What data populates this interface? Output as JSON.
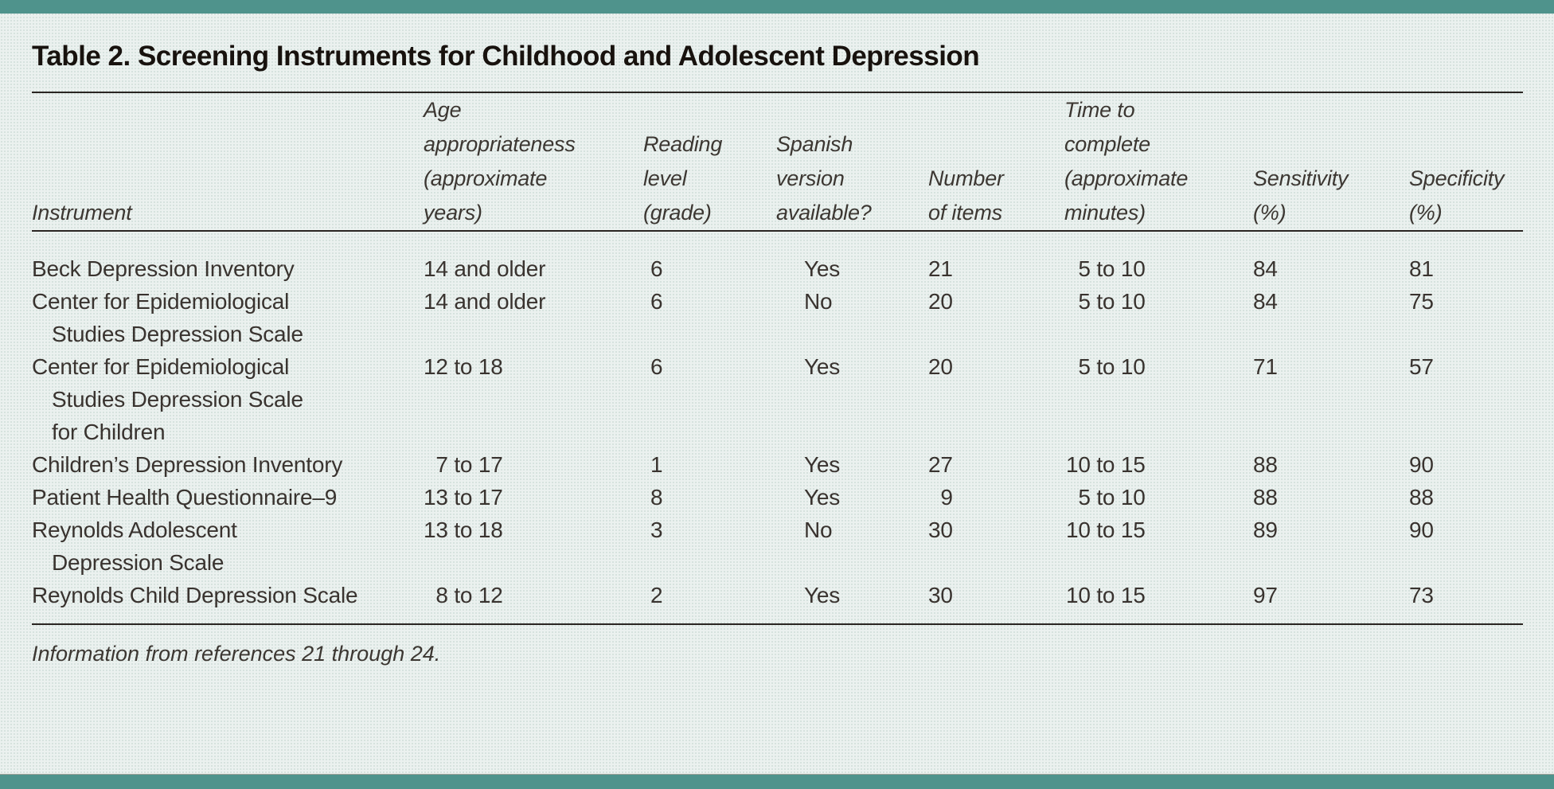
{
  "title": "Table 2. Screening Instruments for Childhood and Adolescent Depression",
  "footnote": "Information from references 21 through 24.",
  "colors": {
    "accent_teal": "#4f938c",
    "background": "#ebf1ef",
    "rule": "#2a2522",
    "text": "#39332f"
  },
  "table": {
    "columns": [
      {
        "key": "instrument",
        "lines": [
          "Instrument"
        ]
      },
      {
        "key": "age",
        "lines": [
          "Age",
          "appropriateness",
          "(approximate",
          "years)"
        ],
        "digit_align": true
      },
      {
        "key": "reading_level",
        "lines": [
          "Reading",
          "level",
          "(grade)"
        ]
      },
      {
        "key": "spanish",
        "lines": [
          "Spanish",
          "version",
          "available?"
        ]
      },
      {
        "key": "items",
        "lines": [
          "Number",
          "of items"
        ],
        "digit_align": true
      },
      {
        "key": "time",
        "lines": [
          "Time to",
          "complete",
          "(approximate",
          "minutes)"
        ],
        "digit_align": true
      },
      {
        "key": "sensitivity",
        "lines": [
          "Sensitivity",
          "(%)"
        ]
      },
      {
        "key": "specificity",
        "lines": [
          "Specificity",
          "(%)"
        ]
      }
    ],
    "rows": [
      {
        "instrument": [
          "Beck Depression Inventory"
        ],
        "age": "14 and older",
        "reading_level": "6",
        "spanish": "Yes",
        "items": "21",
        "time": "5 to 10",
        "sensitivity": "84",
        "specificity": "81"
      },
      {
        "instrument": [
          "Center for Epidemiological",
          "Studies Depression Scale"
        ],
        "age": "14 and older",
        "reading_level": "6",
        "spanish": "No",
        "items": "20",
        "time": "5 to 10",
        "sensitivity": "84",
        "specificity": "75"
      },
      {
        "instrument": [
          "Center for Epidemiological",
          "Studies Depression Scale",
          "for Children"
        ],
        "age": "12 to 18",
        "reading_level": "6",
        "spanish": "Yes",
        "items": "20",
        "time": "5 to 10",
        "sensitivity": "71",
        "specificity": "57"
      },
      {
        "instrument": [
          "Children’s Depression Inventory"
        ],
        "age": "7 to 17",
        "reading_level": "1",
        "spanish": "Yes",
        "items": "27",
        "time": "10 to 15",
        "sensitivity": "88",
        "specificity": "90"
      },
      {
        "instrument": [
          "Patient Health Questionnaire–9"
        ],
        "age": "13 to 17",
        "reading_level": "8",
        "spanish": "Yes",
        "items": "9",
        "time": "5 to 10",
        "sensitivity": "88",
        "specificity": "88"
      },
      {
        "instrument": [
          "Reynolds Adolescent",
          "Depression Scale"
        ],
        "age": "13 to 18",
        "reading_level": "3",
        "spanish": "No",
        "items": "30",
        "time": "10 to 15",
        "sensitivity": "89",
        "specificity": "90"
      },
      {
        "instrument": [
          "Reynolds Child Depression Scale"
        ],
        "age": "8 to 12",
        "reading_level": "2",
        "spanish": "Yes",
        "items": "30",
        "time": "10 to 15",
        "sensitivity": "97",
        "specificity": "73"
      }
    ]
  }
}
